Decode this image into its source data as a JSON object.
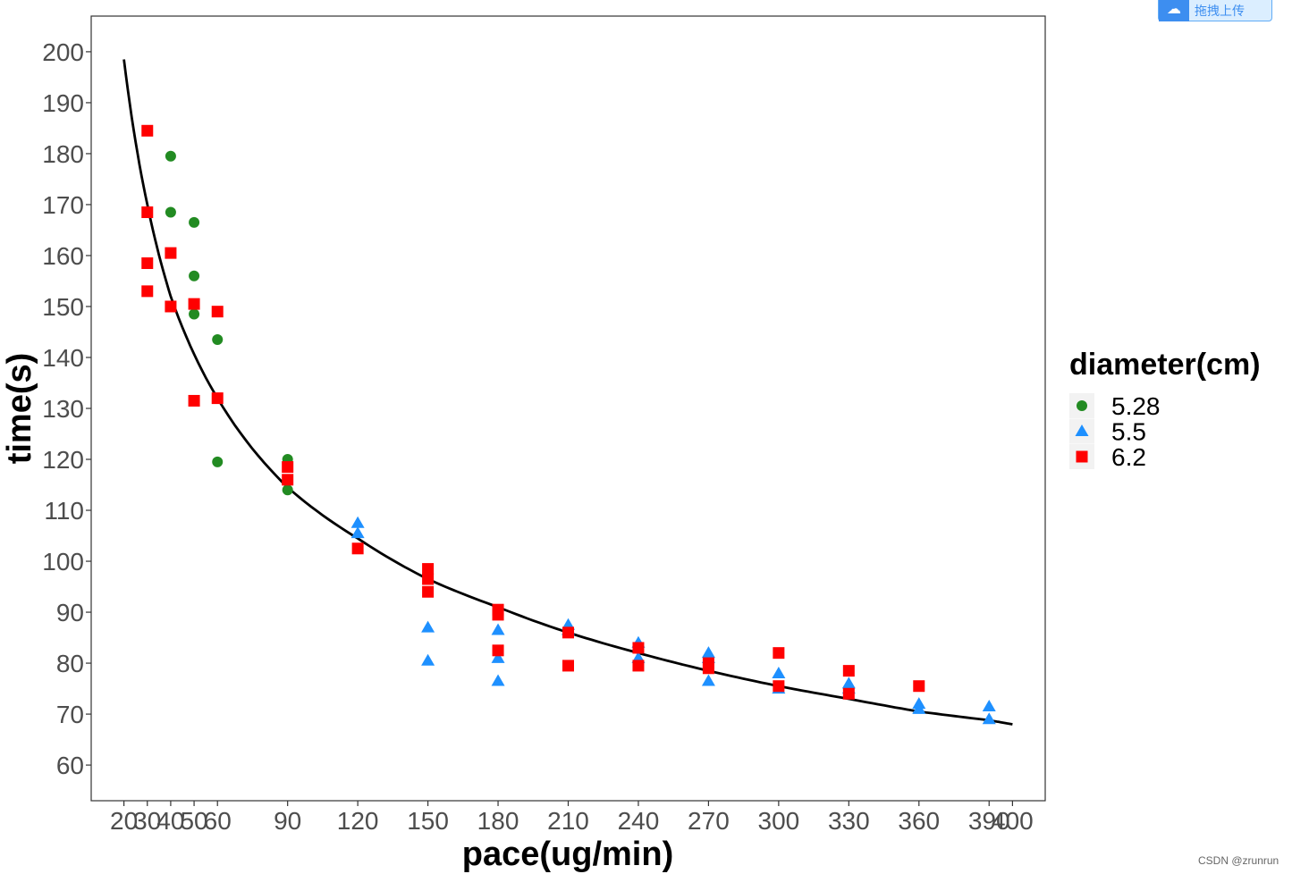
{
  "upload_button": {
    "label": "拖拽上传",
    "icon": "cloud-upload-icon"
  },
  "watermark": "CSDN @zrunrun",
  "chart_data": {
    "type": "scatter",
    "xlabel": "pace(ug/min)",
    "ylabel": "time(s)",
    "xlim": [
      6,
      414
    ],
    "ylim": [
      53,
      207
    ],
    "x_ticks": [
      20,
      30,
      40,
      50,
      60,
      90,
      120,
      150,
      180,
      210,
      240,
      270,
      300,
      330,
      360,
      390,
      400
    ],
    "y_ticks": [
      60,
      70,
      80,
      90,
      100,
      110,
      120,
      130,
      140,
      150,
      160,
      170,
      180,
      190,
      200
    ],
    "grid": false,
    "legend": {
      "title": "diameter(cm)",
      "placement": "right"
    },
    "fit_curve": {
      "type": "power",
      "points": [
        [
          20,
          198.5
        ],
        [
          30,
          170
        ],
        [
          40,
          152
        ],
        [
          60,
          132
        ],
        [
          90,
          114.5
        ],
        [
          120,
          104.5
        ],
        [
          150,
          96.5
        ],
        [
          180,
          91
        ],
        [
          210,
          86
        ],
        [
          240,
          82
        ],
        [
          270,
          78.5
        ],
        [
          300,
          75.5
        ],
        [
          330,
          73
        ],
        [
          360,
          70.5
        ],
        [
          390,
          68.8
        ],
        [
          400,
          68
        ]
      ]
    },
    "series": [
      {
        "name": "5.28",
        "marker": "circle",
        "color": "#228B22",
        "points": [
          [
            40,
            179.5
          ],
          [
            40,
            168.5
          ],
          [
            50,
            166.5
          ],
          [
            50,
            156
          ],
          [
            50,
            148.5
          ],
          [
            60,
            143.5
          ],
          [
            60,
            119.5
          ],
          [
            90,
            120
          ],
          [
            90,
            114
          ]
        ]
      },
      {
        "name": "5.5",
        "marker": "triangle",
        "color": "#1E90FF",
        "points": [
          [
            120,
            107.5
          ],
          [
            120,
            105.5
          ],
          [
            150,
            87
          ],
          [
            150,
            80.5
          ],
          [
            180,
            86.5
          ],
          [
            180,
            81
          ],
          [
            180,
            76.5
          ],
          [
            210,
            87.5
          ],
          [
            210,
            86.5
          ],
          [
            240,
            84
          ],
          [
            240,
            81
          ],
          [
            270,
            82
          ],
          [
            270,
            81
          ],
          [
            270,
            76.5
          ],
          [
            300,
            78
          ],
          [
            300,
            75
          ],
          [
            330,
            76
          ],
          [
            330,
            75
          ],
          [
            360,
            72
          ],
          [
            360,
            71
          ],
          [
            390,
            71.5
          ],
          [
            390,
            69
          ]
        ]
      },
      {
        "name": "6.2",
        "marker": "square",
        "color": "#FF0000",
        "points": [
          [
            30,
            184.5
          ],
          [
            30,
            168.5
          ],
          [
            30,
            158.5
          ],
          [
            30,
            153
          ],
          [
            40,
            160.5
          ],
          [
            40,
            150
          ],
          [
            50,
            150.5
          ],
          [
            50,
            131.5
          ],
          [
            60,
            149
          ],
          [
            60,
            132
          ],
          [
            90,
            118.5
          ],
          [
            90,
            116
          ],
          [
            120,
            102.5
          ],
          [
            150,
            98.5
          ],
          [
            150,
            96.5
          ],
          [
            150,
            94
          ],
          [
            180,
            90.5
          ],
          [
            180,
            89.5
          ],
          [
            180,
            82.5
          ],
          [
            210,
            86
          ],
          [
            210,
            79.5
          ],
          [
            240,
            83
          ],
          [
            240,
            79.5
          ],
          [
            270,
            80
          ],
          [
            270,
            79
          ],
          [
            300,
            82
          ],
          [
            300,
            75.5
          ],
          [
            330,
            78.5
          ],
          [
            330,
            74
          ],
          [
            360,
            75.5
          ]
        ]
      }
    ]
  }
}
